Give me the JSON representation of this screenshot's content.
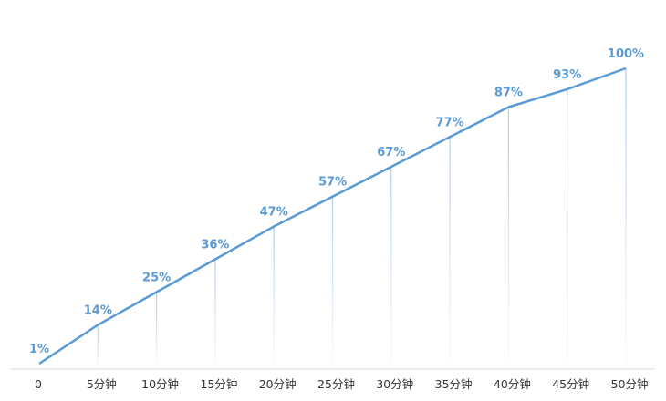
{
  "colors": {
    "line": "#5b9bd5",
    "label": "#5b9bd5",
    "drop_line": "#a9c8ea",
    "axis": "#d9d9d9",
    "tick_text": "#333333"
  },
  "chart_data": {
    "type": "line",
    "categories": [
      "0",
      "5分钟",
      "10分钟",
      "15分钟",
      "20分钟",
      "25分钟",
      "30分钟",
      "35分钟",
      "40分钟",
      "45分钟",
      "50分钟"
    ],
    "values": [
      1,
      14,
      25,
      36,
      47,
      57,
      67,
      77,
      87,
      93,
      100
    ],
    "data_labels": [
      "1%",
      "14%",
      "25%",
      "36%",
      "47%",
      "57%",
      "67%",
      "77%",
      "87%",
      "93%",
      "100%"
    ],
    "title": "",
    "xlabel": "",
    "ylabel": "",
    "ylim": [
      0,
      100
    ],
    "grid": false,
    "legend": "none"
  }
}
